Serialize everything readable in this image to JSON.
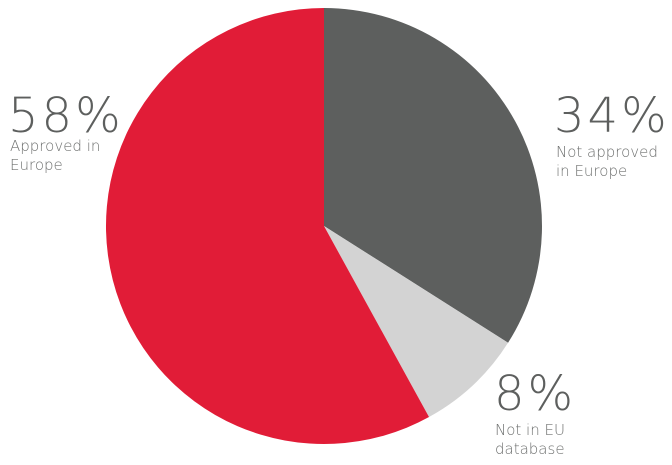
{
  "chart_data": {
    "type": "pie",
    "title": "",
    "start_angle_deg": 0,
    "direction": "clockwise",
    "slices": [
      {
        "percent_label": "34%",
        "label": "Not approved\nin Europe",
        "value": 34,
        "color": "#5d5f5e"
      },
      {
        "percent_label": "8%",
        "label": "Not in EU\ndatabase",
        "value": 8,
        "color": "#d3d3d3"
      },
      {
        "percent_label": "58%",
        "label": "Approved in\nEurope",
        "value": 58,
        "color": "#e11c37"
      }
    ]
  }
}
